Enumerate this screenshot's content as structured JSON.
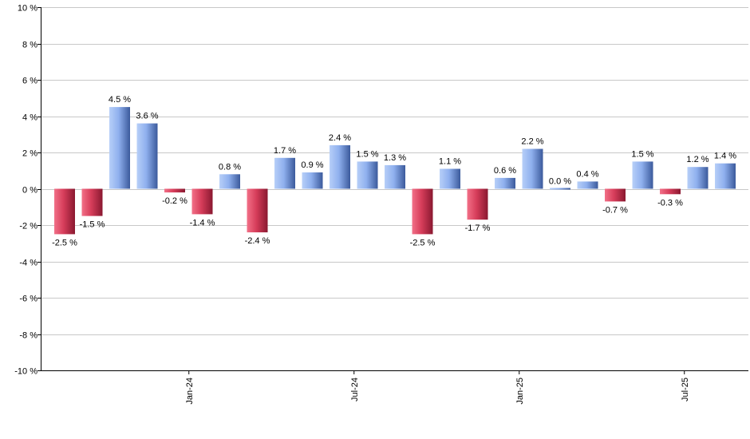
{
  "chart_data": {
    "type": "bar",
    "ylim": [
      -10,
      10
    ],
    "y_ticks": [
      -10,
      -8,
      -6,
      -4,
      -2,
      0,
      2,
      4,
      6,
      8,
      10
    ],
    "y_tick_suffix": " %",
    "grid": true,
    "x_tick_labels": [
      {
        "label": "Jan-24",
        "index": 5
      },
      {
        "label": "Jul-24",
        "index": 11
      },
      {
        "label": "Jan-25",
        "index": 17
      },
      {
        "label": "Jul-25",
        "index": 23
      }
    ],
    "values": [
      -2.5,
      -1.5,
      4.5,
      3.6,
      -0.2,
      -1.4,
      0.8,
      -2.4,
      1.7,
      0.9,
      2.4,
      1.5,
      1.3,
      -2.5,
      1.1,
      -1.7,
      0.6,
      2.2,
      0.0,
      0.4,
      -0.7,
      1.5,
      -0.3,
      1.2,
      1.4
    ],
    "value_labels": [
      "-2.5 %",
      "-1.5 %",
      "4.5 %",
      "3.6 %",
      "-0.2 %",
      "-1.4 %",
      "0.8 %",
      "-2.4 %",
      "1.7 %",
      "0.9 %",
      "2.4 %",
      "1.5 %",
      "1.3 %",
      "-2.5 %",
      "1.1 %",
      "-1.7 %",
      "0.6 %",
      "2.2 %",
      "0.0 %",
      "0.4 %",
      "-0.7 %",
      "1.5 %",
      "-0.3 %",
      "1.2 %",
      "1.4 %"
    ],
    "colors": {
      "positive_light": "#a9c4f5",
      "positive_dark": "#3a5a9e",
      "negative_light": "#f0607a",
      "negative_dark": "#8e1a33",
      "grid": "#c8c8c8"
    }
  }
}
